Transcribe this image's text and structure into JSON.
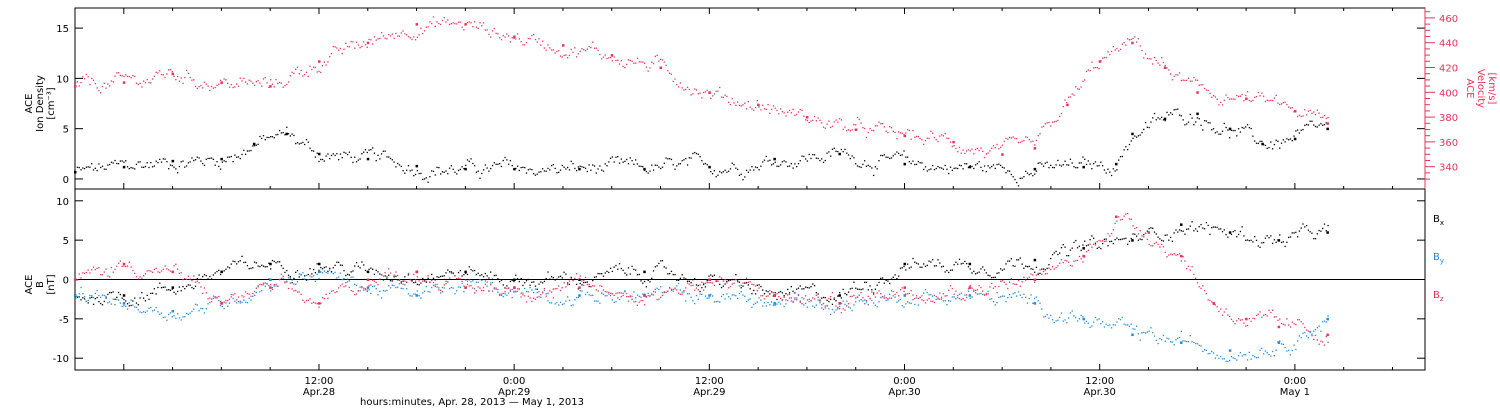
{
  "chart_data": {
    "type": "scatter",
    "xlabel": "hours:minutes, Apr. 28, 2013 — May  1, 2013",
    "x_time_range": [
      "2013-04-27T21:00",
      "2013-05-01T08:00"
    ],
    "x_ticks": [
      {
        "t": "2013-04-28T12:00",
        "time": "12:00",
        "date": "Apr.28"
      },
      {
        "t": "2013-04-29T00:00",
        "time": "0:00",
        "date": "Apr.29"
      },
      {
        "t": "2013-04-29T12:00",
        "time": "12:00",
        "date": "Apr.29"
      },
      {
        "t": "2013-04-30T00:00",
        "time": "0:00",
        "date": "Apr.30"
      },
      {
        "t": "2013-04-30T12:00",
        "time": "12:00",
        "date": "Apr.30"
      },
      {
        "t": "2013-05-01T00:00",
        "time": "0:00",
        "date": "May 1"
      }
    ],
    "panels": [
      {
        "left_axis": {
          "label_lines": [
            "ACE",
            "Ion Density",
            "[cm⁻³]"
          ],
          "ylim": [
            -1,
            17
          ],
          "ticks": [
            0,
            5,
            10,
            15
          ],
          "color": "#000000"
        },
        "right_axis": {
          "label_lines": [
            "ACE",
            "Velocity",
            "[km/s]"
          ],
          "ylim": [
            322,
            468
          ],
          "ticks": [
            340,
            360,
            380,
            400,
            420,
            440,
            460
          ],
          "color": "#e8335a"
        },
        "series": [
          {
            "key": "density",
            "axis": "left",
            "color": "#000000",
            "x": [
              "2013-04-27T21:00",
              "2013-04-28T00:00",
              "2013-04-28T03:00",
              "2013-04-28T06:00",
              "2013-04-28T08:00",
              "2013-04-28T10:00",
              "2013-04-28T12:00",
              "2013-04-28T15:00",
              "2013-04-28T18:00",
              "2013-04-28T21:00",
              "2013-04-29T00:00",
              "2013-04-29T04:00",
              "2013-04-29T08:00",
              "2013-04-29T12:00",
              "2013-04-29T16:00",
              "2013-04-29T20:00",
              "2013-04-30T00:00",
              "2013-04-30T04:00",
              "2013-04-30T08:00",
              "2013-04-30T11:00",
              "2013-04-30T13:00",
              "2013-04-30T14:00",
              "2013-04-30T16:00",
              "2013-04-30T18:00",
              "2013-04-30T20:00",
              "2013-04-30T22:00",
              "2013-05-01T00:00",
              "2013-05-01T02:00"
            ],
            "y": [
              0.7,
              1.2,
              1.8,
              2.0,
              3.5,
              4.5,
              2.5,
              2.0,
              1.3,
              1.0,
              1.0,
              1.0,
              1.0,
              1.2,
              2.0,
              2.5,
              1.5,
              1.2,
              1.0,
              1.2,
              1.5,
              4.5,
              6.0,
              6.5,
              5.0,
              3.5,
              4.0,
              5.0
            ]
          },
          {
            "key": "velocity",
            "axis": "right",
            "color": "#e8335a",
            "x": [
              "2013-04-27T21:00",
              "2013-04-28T00:00",
              "2013-04-28T03:00",
              "2013-04-28T06:00",
              "2013-04-28T09:00",
              "2013-04-28T12:00",
              "2013-04-28T15:00",
              "2013-04-28T18:00",
              "2013-04-28T21:00",
              "2013-04-29T00:00",
              "2013-04-29T03:00",
              "2013-04-29T06:00",
              "2013-04-29T09:00",
              "2013-04-29T12:00",
              "2013-04-29T15:00",
              "2013-04-29T18:00",
              "2013-04-29T21:00",
              "2013-04-30T00:00",
              "2013-04-30T03:00",
              "2013-04-30T06:00",
              "2013-04-30T08:00",
              "2013-04-30T10:00",
              "2013-04-30T12:00",
              "2013-04-30T14:00",
              "2013-04-30T16:00",
              "2013-04-30T18:00",
              "2013-04-30T21:00",
              "2013-05-01T00:00",
              "2013-05-01T02:00"
            ],
            "y": [
              405,
              408,
              415,
              408,
              405,
              425,
              440,
              455,
              455,
              445,
              438,
              430,
              420,
              400,
              390,
              380,
              370,
              365,
              360,
              350,
              355,
              390,
              425,
              440,
              420,
              400,
              395,
              385,
              375
            ]
          }
        ]
      },
      {
        "left_axis": {
          "label_lines": [
            "ACE",
            "B",
            "[nT]"
          ],
          "ylim": [
            -11.5,
            11.5
          ],
          "ticks": [
            -10,
            -5,
            0,
            5,
            10
          ],
          "color": "#000000"
        },
        "zero_line": true,
        "series": [
          {
            "key": "bx",
            "name": "B",
            "sub": "x",
            "axis": "left",
            "color": "#000000",
            "x": [
              "2013-04-27T21:00",
              "2013-04-28T00:00",
              "2013-04-28T03:00",
              "2013-04-28T06:00",
              "2013-04-28T09:00",
              "2013-04-28T12:00",
              "2013-04-28T15:00",
              "2013-04-28T18:00",
              "2013-04-28T21:00",
              "2013-04-29T00:00",
              "2013-04-29T04:00",
              "2013-04-29T08:00",
              "2013-04-29T12:00",
              "2013-04-29T16:00",
              "2013-04-29T20:00",
              "2013-04-30T00:00",
              "2013-04-30T04:00",
              "2013-04-30T08:00",
              "2013-04-30T11:00",
              "2013-04-30T14:00",
              "2013-04-30T17:00",
              "2013-04-30T20:00",
              "2013-04-30T23:00",
              "2013-05-01T02:00"
            ],
            "y": [
              -2,
              -2,
              -1,
              1,
              2,
              2,
              1,
              1,
              1,
              0,
              0,
              1,
              0,
              -2,
              -2,
              2,
              2,
              2.5,
              4,
              5,
              7,
              6,
              5,
              6
            ]
          },
          {
            "key": "by",
            "name": "B",
            "sub": "y",
            "axis": "left",
            "color": "#1f8ce0",
            "x": [
              "2013-04-27T21:00",
              "2013-04-28T00:00",
              "2013-04-28T03:00",
              "2013-04-28T06:00",
              "2013-04-28T09:00",
              "2013-04-28T12:00",
              "2013-04-28T15:00",
              "2013-04-28T18:00",
              "2013-04-28T21:00",
              "2013-04-29T00:00",
              "2013-04-29T04:00",
              "2013-04-29T08:00",
              "2013-04-29T12:00",
              "2013-04-29T16:00",
              "2013-04-29T20:00",
              "2013-04-30T00:00",
              "2013-04-30T04:00",
              "2013-04-30T08:00",
              "2013-04-30T11:00",
              "2013-04-30T14:00",
              "2013-04-30T17:00",
              "2013-04-30T20:00",
              "2013-04-30T23:00",
              "2013-05-01T02:00"
            ],
            "y": [
              -2,
              -3,
              -4,
              -3,
              0,
              1,
              -1,
              -2,
              -1,
              -1,
              -2,
              -2,
              -2,
              -3,
              -3,
              -2,
              -2,
              -3,
              -5,
              -7,
              -8,
              -9,
              -8,
              -5
            ]
          },
          {
            "key": "bz",
            "name": "B",
            "sub": "z",
            "axis": "left",
            "color": "#e8335a",
            "x": [
              "2013-04-27T21:00",
              "2013-04-28T00:00",
              "2013-04-28T03:00",
              "2013-04-28T06:00",
              "2013-04-28T09:00",
              "2013-04-28T12:00",
              "2013-04-28T15:00",
              "2013-04-28T18:00",
              "2013-04-28T21:00",
              "2013-04-29T00:00",
              "2013-04-29T04:00",
              "2013-04-29T08:00",
              "2013-04-29T12:00",
              "2013-04-29T16:00",
              "2013-04-29T20:00",
              "2013-04-30T00:00",
              "2013-04-30T04:00",
              "2013-04-30T08:00",
              "2013-04-30T11:00",
              "2013-04-30T13:00",
              "2013-04-30T15:00",
              "2013-04-30T17:00",
              "2013-04-30T19:00",
              "2013-04-30T21:00",
              "2013-04-30T23:00",
              "2013-05-01T02:00"
            ],
            "y": [
              0,
              2,
              1,
              -3,
              -1,
              -3,
              0,
              1,
              -1,
              -1,
              -1,
              -2,
              0,
              -2,
              -3,
              -1,
              -1,
              0,
              3,
              8,
              6,
              3,
              -3,
              -5,
              -6,
              -7
            ]
          }
        ]
      }
    ]
  }
}
